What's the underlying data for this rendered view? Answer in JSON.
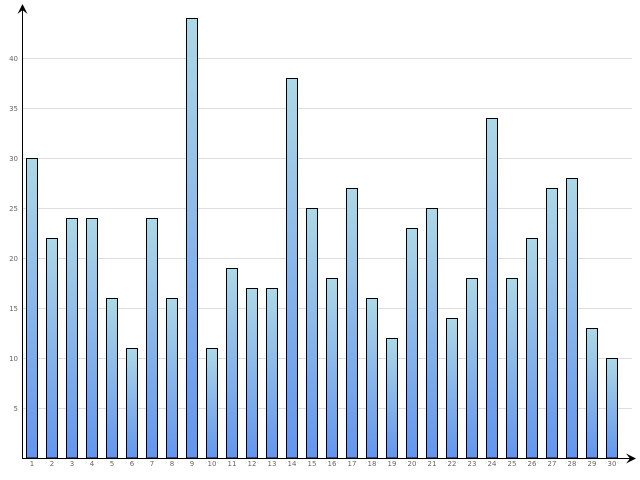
{
  "chart_data": {
    "type": "bar",
    "title": "",
    "xlabel": "",
    "ylabel": "",
    "categories": [
      "1",
      "2",
      "3",
      "4",
      "5",
      "6",
      "7",
      "8",
      "9",
      "10",
      "11",
      "12",
      "13",
      "14",
      "15",
      "16",
      "17",
      "18",
      "19",
      "20",
      "21",
      "22",
      "23",
      "24",
      "25",
      "26",
      "27",
      "28",
      "29",
      "30"
    ],
    "values": [
      30,
      22,
      24,
      24,
      16,
      11,
      24,
      16,
      44,
      11,
      19,
      17,
      17,
      38,
      25,
      18,
      27,
      16,
      12,
      23,
      25,
      14,
      18,
      34,
      18,
      22,
      27,
      28,
      13,
      10
    ],
    "ylim": [
      0,
      44
    ],
    "yticks": [
      5,
      10,
      15,
      20,
      25,
      30,
      35,
      40
    ],
    "ytick_labels": [
      "5",
      "10",
      "15",
      "20",
      "25",
      "30",
      "35",
      "40"
    ],
    "grid": true,
    "legend": "none",
    "colors": {
      "bar_top": "#add8e6",
      "bar_bottom": "#6495ed",
      "bar_outline": "#000000",
      "grid": "#dddddd",
      "axis": "#000000",
      "tick_text": "#666666"
    }
  }
}
